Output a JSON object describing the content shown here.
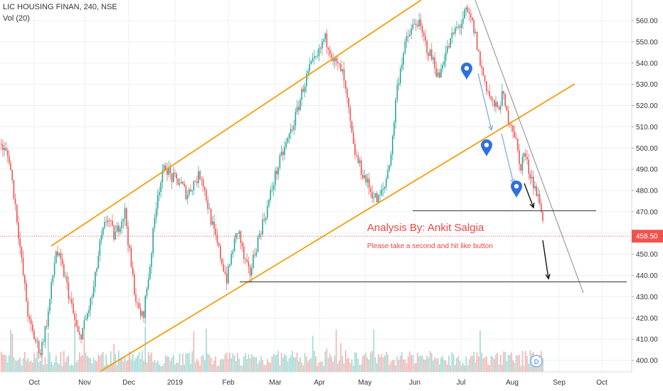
{
  "header": {
    "symbol_line": "LIC HOUSING FINAN, 240, NSE",
    "volume_line": "Vol (20)"
  },
  "annotations": {
    "author": "Analysis By: Ankit Salgia",
    "note": "Please take a second and hit like button"
  },
  "price_axis": {
    "ticks": [
      "400.00",
      "410.00",
      "420.00",
      "430.00",
      "440.00",
      "450.00",
      "460.00",
      "470.00",
      "480.00",
      "490.00",
      "500.00",
      "510.00",
      "520.00",
      "530.00",
      "540.00",
      "550.00",
      "560.00"
    ],
    "last_price": "458.50"
  },
  "time_axis": {
    "labels": [
      "Oct",
      "Nov",
      "Dec",
      "2019",
      "Feb",
      "Mar",
      "Apr",
      "May",
      "Jun",
      "Jul",
      "Aug",
      "Sep",
      "Oct"
    ]
  },
  "badge": {
    "label": "D"
  },
  "colors": {
    "up": "#26a69a",
    "down": "#ef5350",
    "channel": "#f59e0b",
    "last_price": "#ef5350"
  },
  "chart_data": {
    "type": "candlestick",
    "x": [
      "2018-10",
      "2018-11",
      "2018-12",
      "2019-01",
      "2019-02",
      "2019-03",
      "2019-04",
      "2019-05",
      "2019-06",
      "2019-07",
      "2019-08"
    ],
    "close_approx": [
      412,
      445,
      456,
      488,
      435,
      490,
      545,
      478,
      555,
      565,
      472
    ],
    "last_close": 458.5,
    "ylim": [
      396,
      567
    ],
    "support_levels": [
      470.5,
      437
    ],
    "grid": true,
    "legend": "none"
  }
}
